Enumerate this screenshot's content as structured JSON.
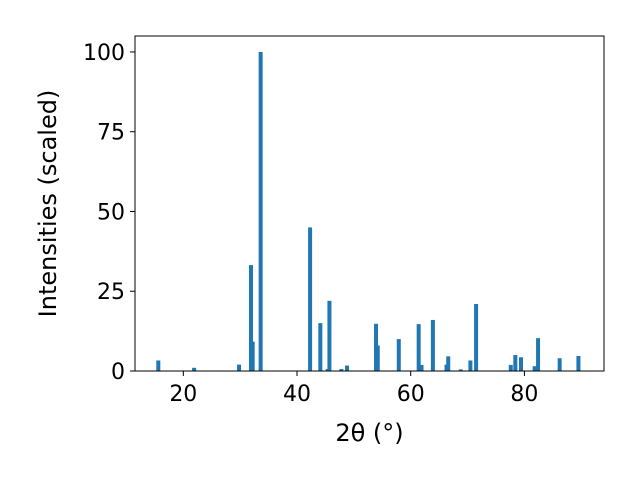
{
  "chart_data": {
    "type": "bar",
    "xlabel": "2θ (°)",
    "ylabel": "Intensities (scaled)",
    "xlim": [
      11.5,
      94.0
    ],
    "ylim": [
      0,
      105
    ],
    "xticks": [
      20,
      40,
      60,
      80
    ],
    "yticks": [
      0,
      25,
      50,
      75,
      100
    ],
    "grid": false,
    "color": "#1f77b4",
    "x": [
      15.6,
      21.9,
      29.8,
      31.9,
      32.2,
      33.6,
      42.3,
      44.1,
      45.4,
      45.7,
      47.8,
      48.8,
      53.9,
      54.2,
      57.9,
      61.4,
      61.9,
      63.9,
      66.3,
      66.6,
      68.8,
      70.5,
      71.5,
      77.6,
      78.4,
      79.4,
      81.8,
      82.4,
      86.2,
      89.5
    ],
    "values": [
      3.3,
      1.0,
      2.0,
      33.2,
      9.2,
      100.0,
      45.0,
      15.0,
      0.6,
      22.0,
      0.6,
      1.7,
      14.8,
      8.0,
      10.0,
      14.7,
      1.9,
      16.0,
      2.0,
      4.6,
      0.5,
      3.3,
      21.0,
      1.9,
      5.0,
      4.3,
      1.5,
      10.3,
      4.0,
      4.7
    ]
  }
}
